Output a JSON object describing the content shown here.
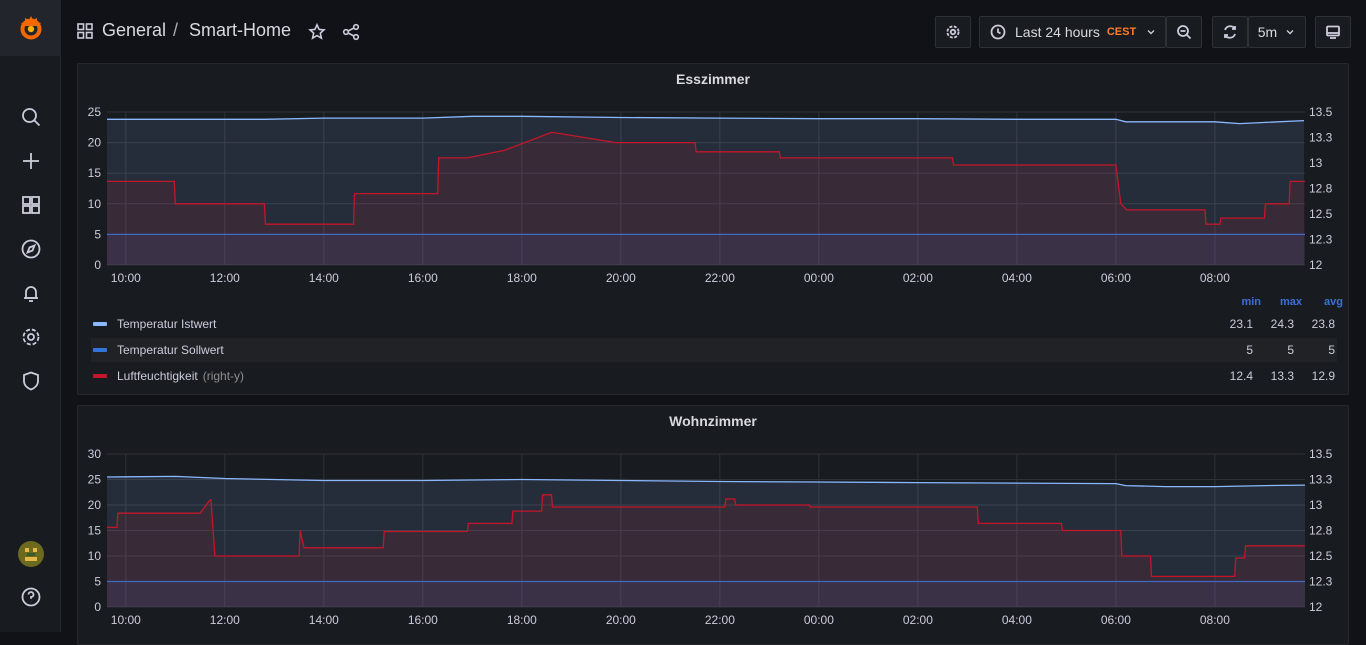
{
  "sidebar": {
    "items": [
      "search-icon",
      "plus-icon",
      "dashboards-icon",
      "explore-icon",
      "alerting-icon",
      "configuration-icon",
      "shield-icon"
    ],
    "bottom": [
      "avatar",
      "help-icon"
    ]
  },
  "header": {
    "folder": "General",
    "separator": "/",
    "title": "Smart-Home",
    "time_range": "Last 24 hours",
    "timezone": "CEST",
    "refresh_interval": "5m"
  },
  "colors": {
    "ist": "#8ab8ff",
    "soll": "#3274d9",
    "humidity": "#c4162a",
    "legend_header": "#3d71d9",
    "timezone": "#ff7c2a"
  },
  "panels": [
    {
      "title": "Esszimmer",
      "legend": {
        "headers": [
          "min",
          "max",
          "avg"
        ],
        "rows": [
          {
            "name": "Temperatur Istwert",
            "axis": "",
            "min": "23.1",
            "max": "24.3",
            "avg": "23.8"
          },
          {
            "name": "Temperatur Sollwert",
            "axis": "",
            "min": "5",
            "max": "5",
            "avg": "5"
          },
          {
            "name": "Luftfeuchtigkeit",
            "axis": "(right-y)",
            "min": "12.4",
            "max": "13.3",
            "avg": "12.9"
          }
        ]
      }
    },
    {
      "title": "Wohnzimmer"
    }
  ],
  "chart_data": [
    {
      "type": "line",
      "title": "Esszimmer",
      "x_ticks": [
        "10:00",
        "12:00",
        "14:00",
        "16:00",
        "18:00",
        "20:00",
        "22:00",
        "00:00",
        "02:00",
        "04:00",
        "06:00",
        "08:00"
      ],
      "x_hours": [
        9.62,
        33.82
      ],
      "y_ticks": [
        "0",
        "5",
        "10",
        "15",
        "20",
        "25"
      ],
      "ylim": [
        0,
        25
      ],
      "y2_ticks": [
        "12",
        "12.3",
        "12.5",
        "12.8",
        "13",
        "13.3",
        "13.5"
      ],
      "y2lim": [
        12,
        13.5
      ],
      "grid": true,
      "series": [
        {
          "name": "Temperatur Istwert",
          "axis": "left",
          "x": [
            9.62,
            12.8,
            14.0,
            16.0,
            17.0,
            18.0,
            20.0,
            22.0,
            24.0,
            26.0,
            28.0,
            30.0,
            30.2,
            32.0,
            32.5,
            33.8
          ],
          "y": [
            23.8,
            23.8,
            24.0,
            24.0,
            24.3,
            24.3,
            24.1,
            24.0,
            23.9,
            23.9,
            23.8,
            23.8,
            23.4,
            23.4,
            23.1,
            23.6
          ]
        },
        {
          "name": "Temperatur Sollwert",
          "axis": "left",
          "x": [
            9.62,
            33.82
          ],
          "y": [
            5,
            5
          ]
        },
        {
          "name": "Luftfeuchtigkeit",
          "axis": "right",
          "x": [
            9.62,
            10.98,
            11.0,
            12.8,
            12.82,
            14.6,
            14.62,
            16.3,
            16.32,
            16.9,
            17.6,
            17.62,
            18.6,
            18.62,
            19.9,
            20.0,
            21.5,
            21.52,
            23.2,
            23.22,
            26.7,
            26.72,
            30.0,
            30.1,
            30.22,
            31.8,
            31.82,
            32.1,
            32.12,
            33.0,
            33.02,
            33.5,
            33.52,
            33.82
          ],
          "y": [
            12.82,
            12.82,
            12.6,
            12.6,
            12.4,
            12.4,
            12.7,
            12.7,
            13.05,
            13.05,
            13.12,
            13.12,
            13.3,
            13.3,
            13.2,
            13.2,
            13.2,
            13.11,
            13.11,
            13.05,
            13.05,
            12.98,
            12.98,
            12.6,
            12.54,
            12.54,
            12.4,
            12.4,
            12.46,
            12.46,
            12.6,
            12.6,
            12.82,
            12.82
          ]
        }
      ]
    },
    {
      "type": "line",
      "title": "Wohnzimmer",
      "x_ticks": [
        "10:00",
        "12:00",
        "14:00",
        "16:00",
        "18:00",
        "20:00",
        "22:00",
        "00:00",
        "02:00",
        "04:00",
        "06:00",
        "08:00"
      ],
      "x_hours": [
        9.62,
        33.82
      ],
      "y_ticks": [
        "0",
        "5",
        "10",
        "15",
        "20",
        "25",
        "30"
      ],
      "ylim": [
        0,
        30
      ],
      "y2_ticks": [
        "12",
        "12.3",
        "12.5",
        "12.8",
        "13",
        "13.3",
        "13.5"
      ],
      "y2lim": [
        12,
        13.5
      ],
      "grid": true,
      "series": [
        {
          "name": "Temperatur Istwert",
          "axis": "left",
          "x": [
            9.62,
            11.0,
            12.0,
            14.0,
            16.0,
            18.0,
            20.0,
            22.0,
            24.0,
            26.0,
            28.0,
            30.0,
            30.2,
            31.0,
            32.0,
            33.0,
            33.82
          ],
          "y": [
            25.5,
            25.6,
            25.2,
            24.8,
            24.8,
            25.0,
            24.8,
            24.6,
            24.5,
            24.4,
            24.3,
            24.2,
            23.8,
            23.6,
            23.6,
            23.8,
            23.9
          ]
        },
        {
          "name": "Temperatur Sollwert",
          "axis": "left",
          "x": [
            9.62,
            33.82
          ],
          "y": [
            5,
            5
          ]
        },
        {
          "name": "Luftfeuchtigkeit",
          "axis": "right",
          "x": [
            9.62,
            9.82,
            9.84,
            11.5,
            11.7,
            11.72,
            11.8,
            11.82,
            13.5,
            13.52,
            13.6,
            13.62,
            15.2,
            15.22,
            16.9,
            16.92,
            17.8,
            17.82,
            18.4,
            18.42,
            18.6,
            18.62,
            20.0,
            20.1,
            22.1,
            22.12,
            22.3,
            22.32,
            23.8,
            23.82,
            27.2,
            27.22,
            28.9,
            28.92,
            30.1,
            30.12,
            30.7,
            30.72,
            32.4,
            32.42,
            32.6,
            32.62,
            33.82
          ],
          "y": [
            12.78,
            12.78,
            12.92,
            12.92,
            13.05,
            13.05,
            12.5,
            12.5,
            12.5,
            12.75,
            12.58,
            12.58,
            12.58,
            12.74,
            12.74,
            12.82,
            12.82,
            12.94,
            12.94,
            13.1,
            13.1,
            12.98,
            12.98,
            12.98,
            12.98,
            13.06,
            13.06,
            13.0,
            13.0,
            12.98,
            12.98,
            12.82,
            12.82,
            12.75,
            12.75,
            12.5,
            12.5,
            12.3,
            12.3,
            12.48,
            12.48,
            12.6,
            12.6
          ]
        }
      ]
    }
  ]
}
